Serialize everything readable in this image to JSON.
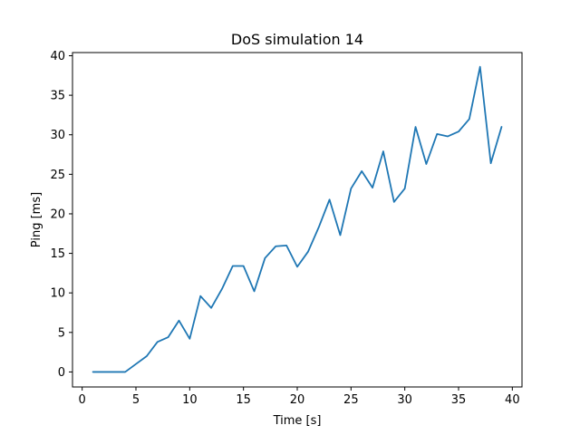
{
  "chart_data": {
    "type": "line",
    "title": "DoS simulation 14",
    "xlabel": "Time [s]",
    "ylabel": "Ping [ms]",
    "xlim": [
      -0.9,
      40.9
    ],
    "ylim": [
      -1.9,
      40.4
    ],
    "xticks": [
      0,
      5,
      10,
      15,
      20,
      25,
      30,
      35,
      40
    ],
    "yticks": [
      0,
      5,
      10,
      15,
      20,
      25,
      30,
      35,
      40
    ],
    "xtick_labels": [
      "0",
      "5",
      "10",
      "15",
      "20",
      "25",
      "30",
      "35",
      "40"
    ],
    "ytick_labels": [
      "0",
      "5",
      "10",
      "15",
      "20",
      "25",
      "30",
      "35",
      "40"
    ],
    "grid": false,
    "legend": null,
    "series": [
      {
        "color": "#1f77b4",
        "x": [
          1,
          2,
          3,
          4,
          5,
          6,
          7,
          8,
          9,
          10,
          11,
          12,
          13,
          14,
          15,
          16,
          17,
          18,
          19,
          20,
          21,
          22,
          23,
          24,
          25,
          26,
          27,
          28,
          29,
          30,
          31,
          32,
          33,
          34,
          35,
          36,
          37,
          38,
          39
        ],
        "y": [
          0.0,
          0.0,
          0.0,
          0.0,
          1.0,
          2.0,
          3.8,
          4.4,
          6.5,
          4.2,
          9.6,
          8.1,
          10.5,
          13.4,
          13.4,
          10.2,
          14.4,
          15.9,
          16.0,
          13.3,
          15.2,
          18.3,
          21.8,
          17.3,
          23.2,
          25.4,
          23.3,
          27.9,
          21.5,
          23.2,
          31.0,
          26.3,
          30.1,
          29.8,
          30.4,
          32.0,
          38.6,
          26.4,
          31.0
        ]
      }
    ]
  }
}
